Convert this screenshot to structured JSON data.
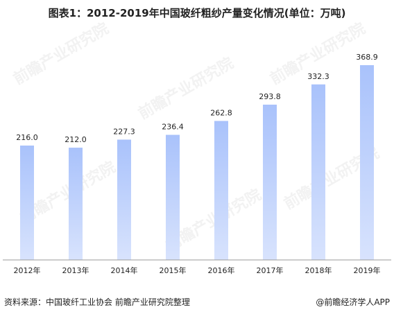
{
  "title": "图表1：2012-2019年中国玻纤粗纱产量变化情况(单位：万吨)",
  "source": "资料来源：中国玻纤工业协会 前瞻产业研究院整理",
  "brand": "@前瞻经济学人APP",
  "watermark": "前瞻产业研究院",
  "colors": {
    "bar_top": "#a9c2fb",
    "bar_bottom": "#d8e3fd",
    "axis": "#999999",
    "text": "#222222"
  },
  "chart_data": {
    "type": "bar",
    "title": "图表1：2012-2019年中国玻纤粗纱产量变化情况(单位：万吨)",
    "categories": [
      "2012年",
      "2013年",
      "2014年",
      "2015年",
      "2016年",
      "2017年",
      "2018年",
      "2019年"
    ],
    "values": [
      216.0,
      212.0,
      227.3,
      236.4,
      262.8,
      293.8,
      332.3,
      368.9
    ],
    "value_labels": [
      "216.0",
      "212.0",
      "227.3",
      "236.4",
      "262.8",
      "293.8",
      "332.3",
      "368.9"
    ],
    "xlabel": "",
    "ylabel": "",
    "ylim": [
      0,
      400
    ],
    "grid": false,
    "legend": "none"
  }
}
